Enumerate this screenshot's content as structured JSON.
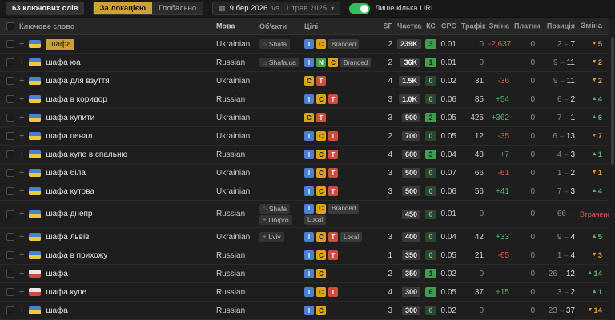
{
  "toolbar": {
    "count": "63 ключових слів",
    "location_toggle": "За локацією",
    "global_toggle": "Глобально",
    "date_current": "9 бер 2026",
    "date_vs": "vs.",
    "date_previous": "1 трав 2025",
    "url_filter_label": "Лише кілька URL",
    "url_filter_on": true
  },
  "table": {
    "headers": [
      "Ключове слово",
      "Мова",
      "Об'єкти",
      "Цілі",
      "SF",
      "Частка",
      "КС",
      "CPC",
      "Трафік",
      "Зміна",
      "Платний",
      "Позиція",
      "Зміна"
    ],
    "sort_column": "Частка",
    "rows": [
      {
        "kw": "шафа",
        "flag": "ua",
        "hl": true,
        "lang": "Ukrainian",
        "objects": [
          {
            "icon": "brand",
            "label": "Shafa"
          }
        ],
        "targets": [
          "I",
          "C",
          "Branded"
        ],
        "sf": "2",
        "share": "239K",
        "ks": "3",
        "cpc": "0.01",
        "traffic": "0",
        "change": "-2,637",
        "paid": "0",
        "pf": "2",
        "pt": "7",
        "pc": "5",
        "pcd": "down"
      },
      {
        "kw": "шафа юа",
        "flag": "ua",
        "lang": "Russian",
        "objects": [
          {
            "icon": "brand",
            "label": "Shafa.ua"
          }
        ],
        "targets": [
          "I",
          "N",
          "C",
          "Branded"
        ],
        "sf": "2",
        "share": "36K",
        "ks": "1",
        "cpc": "0.01",
        "traffic": "0",
        "change": "",
        "paid": "0",
        "pf": "9",
        "pt": "11",
        "pc": "2",
        "pcd": "down"
      },
      {
        "kw": "шафа для взуття",
        "flag": "ua",
        "lang": "Ukrainian",
        "objects": [],
        "targets": [
          "C",
          "T"
        ],
        "sf": "4",
        "share": "1.5K",
        "ks": "0",
        "cpc": "0.02",
        "traffic": "31",
        "change": "-36",
        "paid": "0",
        "pf": "9",
        "pt": "11",
        "pc": "2",
        "pcd": "down"
      },
      {
        "kw": "шафа в коридор",
        "flag": "ua",
        "lang": "Russian",
        "objects": [],
        "targets": [
          "I",
          "C",
          "T"
        ],
        "sf": "3",
        "share": "1.0K",
        "ks": "0",
        "cpc": "0.06",
        "traffic": "85",
        "change": "+54",
        "paid": "0",
        "pf": "6",
        "pt": "2",
        "pc": "4",
        "pcd": "up"
      },
      {
        "kw": "шафа купити",
        "flag": "ua",
        "lang": "Ukrainian",
        "objects": [],
        "targets": [
          "C",
          "T"
        ],
        "sf": "3",
        "share": "900",
        "ks": "2",
        "cpc": "0.05",
        "traffic": "425",
        "change": "+362",
        "paid": "0",
        "pf": "7",
        "pt": "1",
        "pc": "6",
        "pcd": "up"
      },
      {
        "kw": "шафа пенал",
        "flag": "ua",
        "lang": "Ukrainian",
        "objects": [],
        "targets": [
          "I",
          "C",
          "T"
        ],
        "sf": "2",
        "share": "700",
        "ks": "0",
        "cpc": "0.05",
        "traffic": "12",
        "change": "-35",
        "paid": "0",
        "pf": "6",
        "pt": "13",
        "pc": "7",
        "pcd": "down"
      },
      {
        "kw": "шафа купе в спальню",
        "flag": "ua",
        "lang": "Russian",
        "objects": [],
        "targets": [
          "I",
          "C",
          "T"
        ],
        "sf": "4",
        "share": "600",
        "ks": "3",
        "cpc": "0.04",
        "traffic": "48",
        "change": "+7",
        "paid": "0",
        "pf": "4",
        "pt": "3",
        "pc": "1",
        "pcd": "up"
      },
      {
        "kw": "шафа біла",
        "flag": "ua",
        "lang": "Ukrainian",
        "objects": [],
        "targets": [
          "I",
          "C",
          "T"
        ],
        "sf": "3",
        "share": "500",
        "ks": "0",
        "cpc": "0.07",
        "traffic": "66",
        "change": "-61",
        "paid": "0",
        "pf": "1",
        "pt": "2",
        "pc": "1",
        "pcd": "down"
      },
      {
        "kw": "шафа кутова",
        "flag": "ua",
        "lang": "Ukrainian",
        "objects": [],
        "targets": [
          "I",
          "C",
          "T"
        ],
        "sf": "3",
        "share": "500",
        "ks": "0",
        "cpc": "0.06",
        "traffic": "56",
        "change": "+41",
        "paid": "0",
        "pf": "7",
        "pt": "3",
        "pc": "4",
        "pcd": "up"
      },
      {
        "kw": "шафа днепр",
        "flag": "ua",
        "lang": "Russian",
        "tall": true,
        "objects": [
          {
            "icon": "brand",
            "label": "Shafa"
          },
          {
            "icon": "pin",
            "label": "Dnipro"
          }
        ],
        "targets": [
          "I",
          "C",
          "Branded",
          "Local"
        ],
        "sf": "",
        "share": "450",
        "ks": "0",
        "cpc": "0.01",
        "traffic": "0",
        "change": "",
        "paid": "0",
        "pf": "66",
        "pt": "",
        "pc": "Втрачено",
        "pcd": "lost"
      },
      {
        "kw": "шафа львів",
        "flag": "ua",
        "lang": "Ukrainian",
        "objects": [
          {
            "icon": "pin",
            "label": "Lviv"
          }
        ],
        "targets": [
          "I",
          "C",
          "T",
          "Local"
        ],
        "sf": "3",
        "share": "400",
        "ks": "0",
        "cpc": "0.04",
        "traffic": "42",
        "change": "+33",
        "paid": "0",
        "pf": "9",
        "pt": "4",
        "pc": "5",
        "pcd": "up"
      },
      {
        "kw": "шафа в прихожу",
        "flag": "ua",
        "lang": "Russian",
        "objects": [],
        "targets": [
          "I",
          "C",
          "T"
        ],
        "sf": "1",
        "share": "350",
        "ks": "0",
        "cpc": "0.05",
        "traffic": "21",
        "change": "-65",
        "paid": "0",
        "pf": "1",
        "pt": "4",
        "pc": "3",
        "pcd": "down"
      },
      {
        "kw": "шафа",
        "flag": "pl",
        "lang": "Russian",
        "objects": [],
        "targets": [
          "I",
          "C"
        ],
        "sf": "2",
        "share": "350",
        "ks": "1",
        "cpc": "0.02",
        "traffic": "0",
        "change": "",
        "paid": "0",
        "pf": "26",
        "pt": "12",
        "pc": "14",
        "pcd": "up"
      },
      {
        "kw": "шафа купе",
        "flag": "pl",
        "lang": "Russian",
        "objects": [],
        "targets": [
          "I",
          "C",
          "T"
        ],
        "sf": "4",
        "share": "300",
        "ks": "6",
        "cpc": "0.05",
        "traffic": "37",
        "change": "+15",
        "paid": "0",
        "pf": "3",
        "pt": "2",
        "pc": "1",
        "pcd": "up"
      },
      {
        "kw": "шафа",
        "flag": "ua",
        "lang": "Russian",
        "objects": [],
        "targets": [
          "I",
          "C"
        ],
        "sf": "3",
        "share": "300",
        "ks": "0",
        "cpc": "0.02",
        "traffic": "0",
        "change": "",
        "paid": "0",
        "pf": "23",
        "pt": "37",
        "pc": "14",
        "pcd": "down"
      }
    ]
  },
  "colors": {
    "accent_amber": "#cfa033",
    "positive_green": "#55b36c",
    "negative_red": "#e0584c",
    "decline_orange": "#e0913c",
    "toggle_green": "#2ec05f",
    "intent_informational": "#4a7fd4",
    "intent_navigational": "#43a047",
    "intent_commercial": "#d9a514",
    "intent_transactional": "#cf4c3e"
  }
}
